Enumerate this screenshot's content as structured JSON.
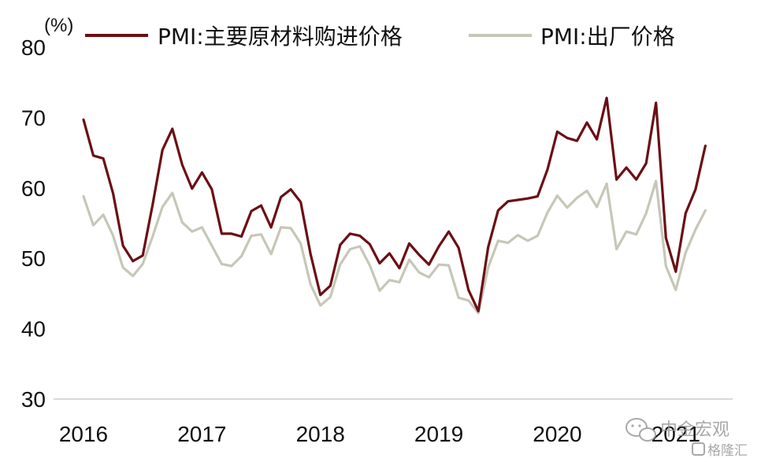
{
  "chart_data": {
    "type": "line",
    "unit_label": "(%)",
    "x_start": "2016-01",
    "x_ticks": [
      "2016",
      "2017",
      "2018",
      "2019",
      "2020",
      "2021"
    ],
    "ylim": [
      30,
      80
    ],
    "y_ticks": [
      30,
      40,
      50,
      60,
      70,
      80
    ],
    "grid": false,
    "legend_position": "top",
    "series": [
      {
        "name": "PMI:主要原材料购进价格",
        "color": "#6b0f14",
        "values": [
          69.7,
          64.6,
          64.2,
          59.2,
          51.8,
          49.6,
          50.4,
          57.6,
          65.4,
          68.4,
          63.3,
          59.9,
          62.2,
          59.8,
          53.5,
          53.5,
          53.1,
          56.7,
          57.5,
          54.4,
          58.7,
          59.8,
          58.0,
          50.6,
          44.8,
          46.1,
          51.9,
          53.5,
          53.2,
          52.0,
          49.3,
          50.7,
          48.6,
          52.1,
          50.5,
          49.1,
          51.7,
          53.8,
          51.5,
          45.5,
          42.5,
          51.6,
          56.8,
          58.1,
          58.3,
          58.5,
          58.8,
          62.6,
          68.0,
          67.1,
          66.7,
          69.3,
          66.9,
          72.8,
          61.2,
          62.9,
          61.2,
          63.5,
          72.1,
          52.9,
          48.1,
          56.4,
          59.8,
          66.0
        ],
        "end": "2021-04"
      },
      {
        "name": "PMI:出厂价格",
        "color": "#c7c7b8",
        "values": [
          58.8,
          54.7,
          56.2,
          53.2,
          48.7,
          47.5,
          49.2,
          53.1,
          57.3,
          59.3,
          55.1,
          53.8,
          54.4,
          51.8,
          49.2,
          48.9,
          50.3,
          53.2,
          53.4,
          50.6,
          54.4,
          54.3,
          52.1,
          46.3,
          43.3,
          44.5,
          49.1,
          51.3,
          51.7,
          49.0,
          45.4,
          46.9,
          46.6,
          49.8,
          48.0,
          47.3,
          49.1,
          49.0,
          44.4,
          44.0,
          42.2,
          48.7,
          52.5,
          52.2,
          53.3,
          52.5,
          53.2,
          56.5,
          58.9,
          57.2,
          58.6,
          59.6,
          57.3,
          60.6,
          51.3,
          53.8,
          53.4,
          56.4,
          61.0,
          48.9,
          45.5,
          50.8,
          54.1,
          56.8
        ],
        "end": "2021-04"
      }
    ]
  },
  "watermark": {
    "brand_cn": "中金宏观",
    "site_cn": "格隆汇"
  }
}
